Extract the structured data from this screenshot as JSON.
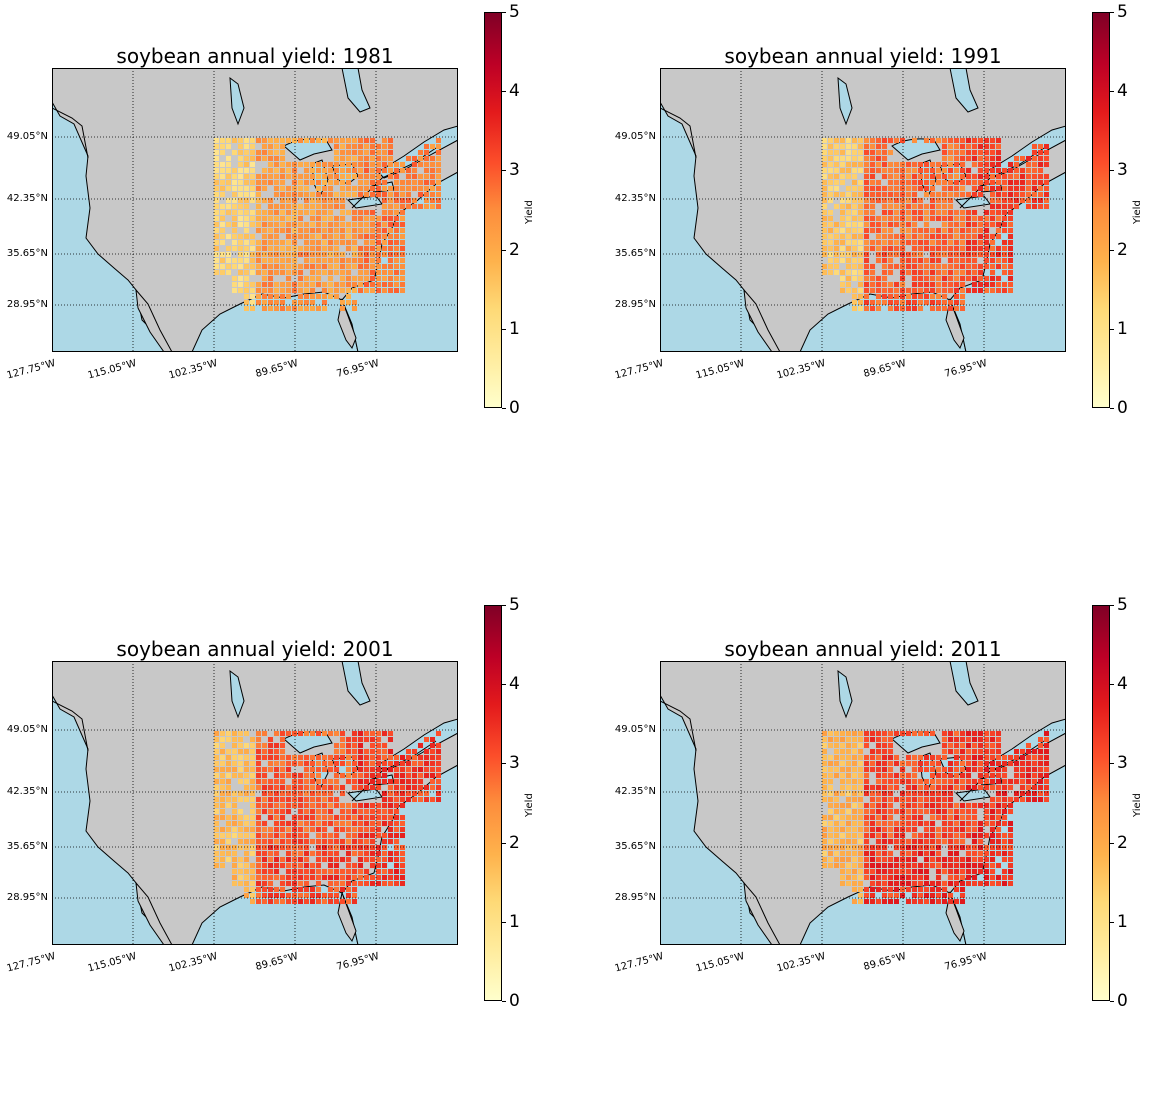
{
  "figure": {
    "panels": [
      {
        "title": "soybean annual yield: 1981",
        "year": 1981
      },
      {
        "title": "soybean annual yield: 1991",
        "year": 1991
      },
      {
        "title": "soybean annual yield: 2001",
        "year": 2001
      },
      {
        "title": "soybean annual yield: 2011",
        "year": 2011
      }
    ],
    "lat_labels": [
      "49.05°N",
      "42.35°N",
      "35.65°N",
      "28.95°N"
    ],
    "lon_labels": [
      "127.75°W",
      "115.05°W",
      "102.35°W",
      "89.65°W",
      "76.95°W"
    ],
    "colorbar": {
      "label": "Yield",
      "ticks": [
        "0",
        "1",
        "2",
        "3",
        "4",
        "5"
      ],
      "range": [
        0,
        5
      ],
      "colormap": "YlOrRd"
    },
    "colors": {
      "land": "#c8c8c8",
      "water": "#add8e6",
      "coast": "#000000",
      "grid": "#000000"
    }
  },
  "chart_data": [
    {
      "type": "heatmap",
      "title": "soybean annual yield: 1981",
      "xlabel": "",
      "ylabel": "",
      "colorbar_label": "Yield",
      "clim": [
        0,
        5
      ],
      "typical_yield_by_region": {
        "west_plains": 1.3,
        "midwest": 2.2,
        "south": 2.3,
        "east": 2.6
      }
    },
    {
      "title": "soybean annual yield: 1991",
      "typical_yield_by_region": {
        "west_plains": 1.5,
        "midwest": 2.8,
        "south": 3.0,
        "east": 3.2
      }
    },
    {
      "title": "soybean annual yield: 2001",
      "typical_yield_by_region": {
        "west_plains": 1.7,
        "midwest": 3.0,
        "south": 3.2,
        "east": 3.3
      }
    },
    {
      "title": "soybean annual yield: 2011",
      "typical_yield_by_region": {
        "west_plains": 1.8,
        "midwest": 3.2,
        "south": 3.4,
        "east": 3.4
      }
    }
  ]
}
